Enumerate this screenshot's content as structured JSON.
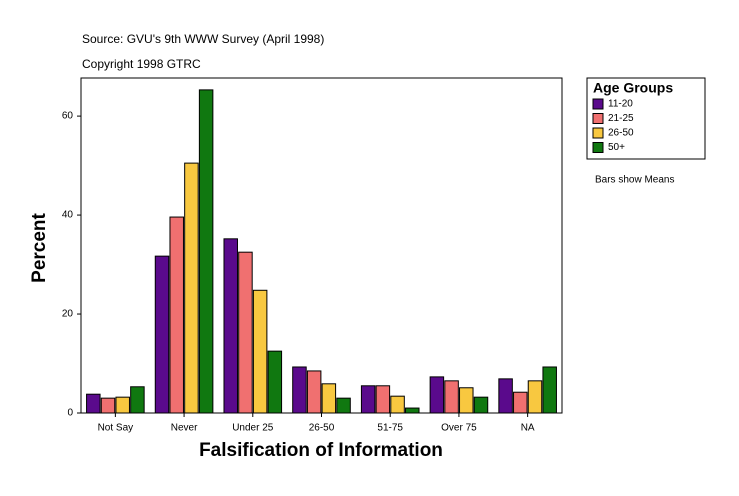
{
  "chart_data": {
    "type": "bar",
    "subtitle": "Source: GVU's 9th WWW Survey (April 1998)",
    "copyright": "Copyright 1998 GTRC",
    "x_label": "Falsification of Information",
    "y_label": "Percent",
    "annotation": "Bars show Means",
    "legend_title": "Age Groups",
    "legend": "right",
    "grid": false,
    "categories": [
      "Not Say",
      "Never",
      "Under 25",
      "26-50",
      "51-75",
      "Over 75",
      "NA"
    ],
    "series": [
      {
        "name": "11-20",
        "color": "#5a0a8c",
        "values": [
          3.8,
          31.7,
          35.2,
          9.3,
          5.5,
          7.3,
          6.9
        ]
      },
      {
        "name": "21-25",
        "color": "#f07070",
        "values": [
          3.0,
          39.6,
          32.5,
          8.5,
          5.5,
          6.5,
          4.2
        ]
      },
      {
        "name": "26-50",
        "color": "#f8c840",
        "values": [
          3.2,
          50.5,
          24.8,
          5.9,
          3.4,
          5.1,
          6.5
        ]
      },
      {
        "name": "50+",
        "color": "#107810",
        "values": [
          5.3,
          65.3,
          12.5,
          3.0,
          1.0,
          3.2,
          9.3
        ]
      }
    ],
    "ylim": [
      0,
      67.7
    ],
    "yticks": [
      0,
      20,
      40,
      60
    ]
  }
}
